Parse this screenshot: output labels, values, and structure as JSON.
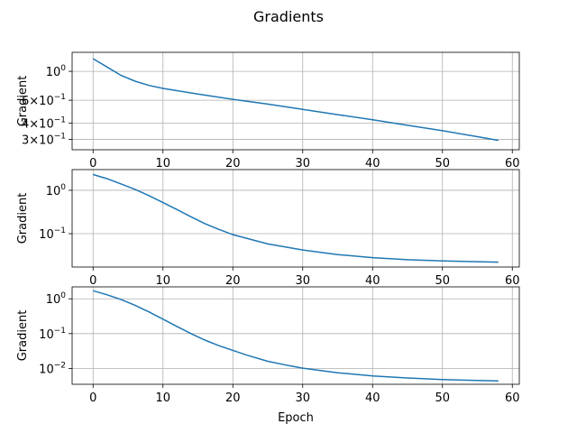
{
  "figure": {
    "title": "Gradients"
  },
  "chart_data": [
    {
      "type": "line",
      "ylabel": "Gradient",
      "xlabel": "",
      "yscale": "log",
      "xlim": [
        -3,
        61
      ],
      "ylim": [
        0.25,
        1.4
      ],
      "grid": true,
      "xticks": [
        0,
        10,
        20,
        30,
        40,
        50,
        60
      ],
      "yticks": [
        {
          "value": 1.0,
          "base": "10",
          "exp": "0",
          "mant": ""
        },
        {
          "value": 0.6,
          "base": "10",
          "exp": "−1",
          "mant": "6×"
        },
        {
          "value": 0.4,
          "base": "10",
          "exp": "−1",
          "mant": "4×"
        },
        {
          "value": 0.3,
          "base": "10",
          "exp": "−1",
          "mant": "3×"
        }
      ],
      "series": [
        {
          "x": [
            0,
            2,
            4,
            6,
            8,
            10,
            15,
            20,
            25,
            30,
            35,
            40,
            45,
            50,
            55,
            58
          ],
          "y": [
            1.25,
            1.08,
            0.93,
            0.84,
            0.78,
            0.74,
            0.67,
            0.61,
            0.56,
            0.51,
            0.465,
            0.425,
            0.385,
            0.35,
            0.315,
            0.295
          ]
        }
      ]
    },
    {
      "type": "line",
      "ylabel": "Gradient",
      "xlabel": "",
      "yscale": "log",
      "xlim": [
        -3,
        61
      ],
      "ylim": [
        0.017,
        3.0
      ],
      "grid": true,
      "xticks": [
        0,
        10,
        20,
        30,
        40,
        50,
        60
      ],
      "yticks": [
        {
          "value": 1.0,
          "base": "10",
          "exp": "0",
          "mant": ""
        },
        {
          "value": 0.1,
          "base": "10",
          "exp": "−1",
          "mant": ""
        }
      ],
      "series": [
        {
          "x": [
            0,
            2,
            4,
            6,
            8,
            10,
            12,
            14,
            16,
            18,
            20,
            25,
            30,
            35,
            40,
            45,
            50,
            55,
            58
          ],
          "y": [
            2.3,
            1.85,
            1.4,
            1.05,
            0.75,
            0.52,
            0.36,
            0.245,
            0.17,
            0.125,
            0.095,
            0.058,
            0.042,
            0.033,
            0.028,
            0.025,
            0.0235,
            0.0225,
            0.022
          ]
        }
      ]
    },
    {
      "type": "line",
      "ylabel": "Gradient",
      "xlabel": "Epoch",
      "yscale": "log",
      "xlim": [
        -3,
        61
      ],
      "ylim": [
        0.0035,
        2.2
      ],
      "grid": true,
      "xticks": [
        0,
        10,
        20,
        30,
        40,
        50,
        60
      ],
      "yticks": [
        {
          "value": 1.0,
          "base": "10",
          "exp": "0",
          "mant": ""
        },
        {
          "value": 0.1,
          "base": "10",
          "exp": "−1",
          "mant": ""
        },
        {
          "value": 0.01,
          "base": "10",
          "exp": "−2",
          "mant": ""
        }
      ],
      "series": [
        {
          "x": [
            0,
            2,
            4,
            6,
            8,
            10,
            12,
            14,
            16,
            18,
            20,
            22,
            25,
            28,
            30,
            35,
            40,
            45,
            50,
            55,
            58
          ],
          "y": [
            1.7,
            1.3,
            0.95,
            0.65,
            0.42,
            0.26,
            0.16,
            0.1,
            0.065,
            0.045,
            0.033,
            0.024,
            0.016,
            0.012,
            0.0102,
            0.0075,
            0.0061,
            0.0053,
            0.0048,
            0.0045,
            0.0044
          ]
        }
      ]
    }
  ]
}
